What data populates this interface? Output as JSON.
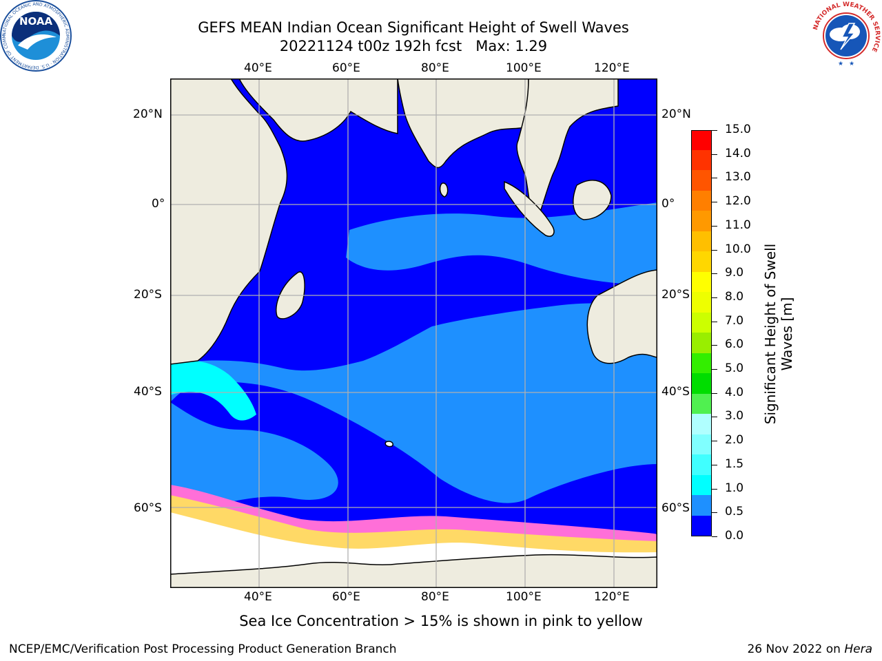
{
  "title": {
    "line1": "GEFS MEAN Indian Ocean Significant Height of Swell Waves",
    "line2": "20221124 t00z 192h fcst   Max: 1.29"
  },
  "map": {
    "lon_labels": [
      "40°E",
      "60°E",
      "80°E",
      "100°E",
      "120°E"
    ],
    "lat_labels": [
      "20°N",
      "0°",
      "20°S",
      "40°S",
      "60°S"
    ],
    "land_color": "#eeecdf",
    "grid_color": "#b0b0b0"
  },
  "colorbar": {
    "title_line1": "Significant Height of Swell",
    "title_line2": "Waves [m]",
    "labels": [
      "15.0",
      "14.0",
      "13.0",
      "12.0",
      "11.0",
      "10.0",
      "9.0",
      "8.0",
      "7.0",
      "6.0",
      "5.0",
      "4.0",
      "3.0",
      "2.0",
      "1.5",
      "1.0",
      "0.5",
      "0.0"
    ],
    "colors": [
      "#0000ff",
      "#1e90ff",
      "#00ffff",
      "#40ffff",
      "#80ffff",
      "#b0ffff",
      "#50f050",
      "#00dd00",
      "#33ee00",
      "#99ee00",
      "#ccff00",
      "#eeff00",
      "#ffff00",
      "#ffd700",
      "#ffbf00",
      "#ff9900",
      "#ff7f00",
      "#ff5500",
      "#ff3300",
      "#ff0000"
    ]
  },
  "caption": "Sea Ice Concentration > 15% is shown in pink to yellow",
  "footer": {
    "left": "NCEP/EMC/Verification Post Processing Product Generation Branch",
    "right_prefix": "26 Nov 2022 on ",
    "right_host": "Hera"
  },
  "logos": {
    "noaa_text": "NOAA",
    "noaa_ring": "NATIONAL OCEANIC AND ATMOSPHERIC ADMINISTRATION · U.S. DEPARTMENT OF COMMERCE",
    "nws_ring": "NATIONAL WEATHER SERVICE"
  }
}
